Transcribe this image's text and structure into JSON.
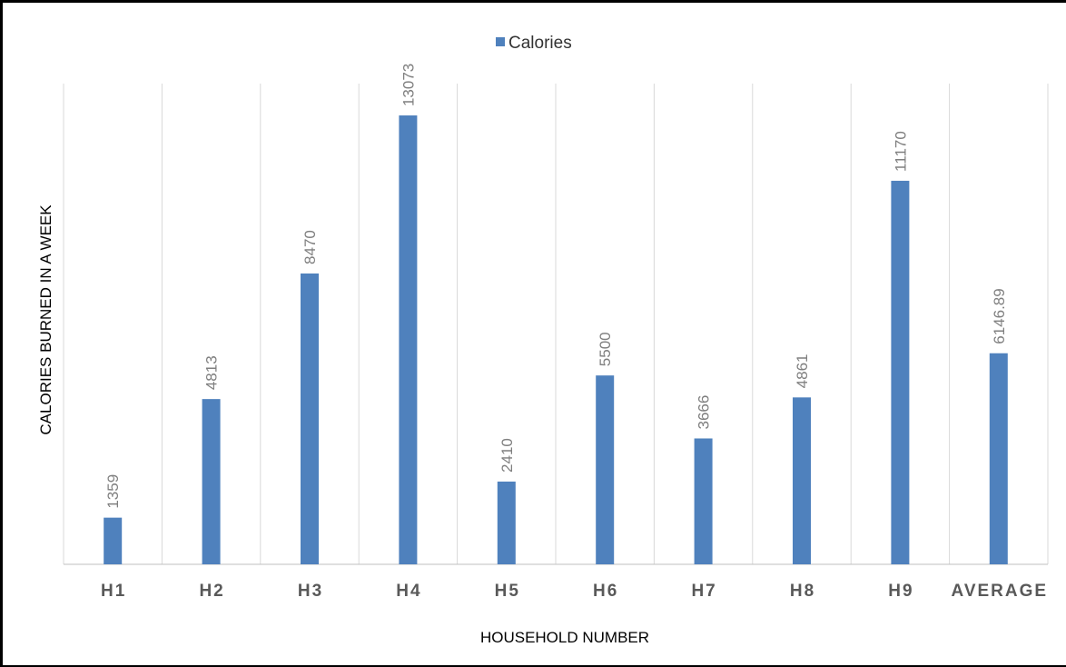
{
  "chart_data": {
    "type": "bar",
    "categories": [
      "H1",
      "H2",
      "H3",
      "H4",
      "H5",
      "H6",
      "H7",
      "H8",
      "H9",
      "AVERAGE"
    ],
    "series": [
      {
        "name": "Calories",
        "values": [
          1359,
          4813,
          8470,
          13073,
          2410,
          5500,
          3666,
          4861,
          11170,
          6146.89
        ],
        "color": "#4f81bd"
      }
    ],
    "data_labels": [
      "1359",
      "4813",
      "8470",
      "13073",
      "2410",
      "5500",
      "3666",
      "4861",
      "11170",
      "6146.89"
    ],
    "title": "",
    "xlabel": "HOUSEHOLD NUMBER",
    "ylabel": "CALORIES BURNED IN A WEEK",
    "ylim": [
      0,
      14000
    ],
    "grid": {
      "vertical": true,
      "horizontal": false
    },
    "legend_position": "top-center"
  }
}
